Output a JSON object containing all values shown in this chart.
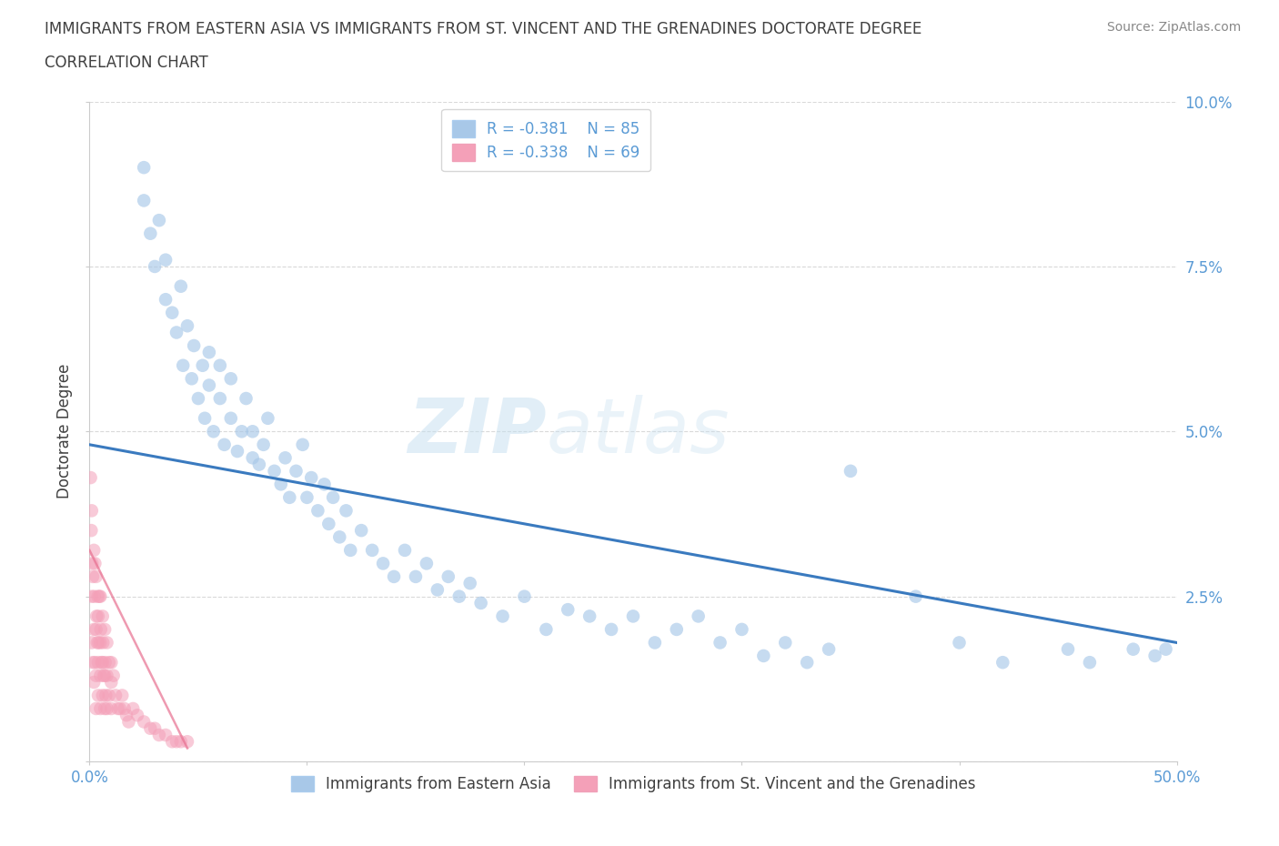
{
  "title_line1": "IMMIGRANTS FROM EASTERN ASIA VS IMMIGRANTS FROM ST. VINCENT AND THE GRENADINES DOCTORATE DEGREE",
  "title_line2": "CORRELATION CHART",
  "source": "Source: ZipAtlas.com",
  "ylabel": "Doctorate Degree",
  "xlim": [
    0,
    0.5
  ],
  "ylim": [
    0,
    0.1
  ],
  "xticks": [
    0.0,
    0.1,
    0.2,
    0.3,
    0.4,
    0.5
  ],
  "yticks": [
    0.0,
    0.025,
    0.05,
    0.075,
    0.1
  ],
  "xtick_labels": [
    "0.0%",
    "",
    "",
    "",
    "",
    "50.0%"
  ],
  "ytick_labels": [
    "",
    "2.5%",
    "5.0%",
    "7.5%",
    "10.0%"
  ],
  "legend_r1": "R = -0.381",
  "legend_n1": "N = 85",
  "legend_r2": "R = -0.338",
  "legend_n2": "N = 69",
  "color_blue": "#a8c8e8",
  "color_pink": "#f4a0b8",
  "color_line_blue": "#3a7abf",
  "color_line_pink": "#e87090",
  "watermark_zip": "ZIP",
  "watermark_atlas": "atlas",
  "blue_scatter_x": [
    0.025,
    0.025,
    0.028,
    0.03,
    0.032,
    0.035,
    0.035,
    0.038,
    0.04,
    0.042,
    0.043,
    0.045,
    0.047,
    0.048,
    0.05,
    0.052,
    0.053,
    0.055,
    0.055,
    0.057,
    0.06,
    0.06,
    0.062,
    0.065,
    0.065,
    0.068,
    0.07,
    0.072,
    0.075,
    0.075,
    0.078,
    0.08,
    0.082,
    0.085,
    0.088,
    0.09,
    0.092,
    0.095,
    0.098,
    0.1,
    0.102,
    0.105,
    0.108,
    0.11,
    0.112,
    0.115,
    0.118,
    0.12,
    0.125,
    0.13,
    0.135,
    0.14,
    0.145,
    0.15,
    0.155,
    0.16,
    0.165,
    0.17,
    0.175,
    0.18,
    0.19,
    0.2,
    0.21,
    0.22,
    0.23,
    0.24,
    0.25,
    0.26,
    0.27,
    0.28,
    0.29,
    0.3,
    0.31,
    0.32,
    0.33,
    0.34,
    0.38,
    0.4,
    0.42,
    0.45,
    0.46,
    0.48,
    0.49,
    0.495,
    0.35
  ],
  "blue_scatter_y": [
    0.085,
    0.09,
    0.08,
    0.075,
    0.082,
    0.07,
    0.076,
    0.068,
    0.065,
    0.072,
    0.06,
    0.066,
    0.058,
    0.063,
    0.055,
    0.06,
    0.052,
    0.057,
    0.062,
    0.05,
    0.055,
    0.06,
    0.048,
    0.052,
    0.058,
    0.047,
    0.05,
    0.055,
    0.046,
    0.05,
    0.045,
    0.048,
    0.052,
    0.044,
    0.042,
    0.046,
    0.04,
    0.044,
    0.048,
    0.04,
    0.043,
    0.038,
    0.042,
    0.036,
    0.04,
    0.034,
    0.038,
    0.032,
    0.035,
    0.032,
    0.03,
    0.028,
    0.032,
    0.028,
    0.03,
    0.026,
    0.028,
    0.025,
    0.027,
    0.024,
    0.022,
    0.025,
    0.02,
    0.023,
    0.022,
    0.02,
    0.022,
    0.018,
    0.02,
    0.022,
    0.018,
    0.02,
    0.016,
    0.018,
    0.015,
    0.017,
    0.025,
    0.018,
    0.015,
    0.017,
    0.015,
    0.017,
    0.016,
    0.017,
    0.044
  ],
  "pink_scatter_x": [
    0.0005,
    0.0008,
    0.001,
    0.001,
    0.001,
    0.0012,
    0.0015,
    0.0015,
    0.002,
    0.002,
    0.002,
    0.0022,
    0.0025,
    0.0025,
    0.003,
    0.003,
    0.003,
    0.003,
    0.0032,
    0.0035,
    0.0038,
    0.004,
    0.004,
    0.004,
    0.0042,
    0.0045,
    0.005,
    0.005,
    0.005,
    0.005,
    0.0052,
    0.0055,
    0.006,
    0.006,
    0.006,
    0.0062,
    0.0065,
    0.007,
    0.007,
    0.007,
    0.0072,
    0.0075,
    0.008,
    0.008,
    0.008,
    0.009,
    0.009,
    0.01,
    0.01,
    0.01,
    0.011,
    0.012,
    0.013,
    0.014,
    0.015,
    0.016,
    0.017,
    0.018,
    0.02,
    0.022,
    0.025,
    0.028,
    0.03,
    0.032,
    0.035,
    0.038,
    0.04,
    0.042,
    0.045
  ],
  "pink_scatter_y": [
    0.043,
    0.035,
    0.038,
    0.025,
    0.018,
    0.03,
    0.028,
    0.015,
    0.032,
    0.02,
    0.012,
    0.025,
    0.03,
    0.015,
    0.028,
    0.02,
    0.013,
    0.008,
    0.022,
    0.018,
    0.025,
    0.022,
    0.015,
    0.01,
    0.018,
    0.025,
    0.025,
    0.018,
    0.013,
    0.008,
    0.02,
    0.015,
    0.022,
    0.015,
    0.01,
    0.018,
    0.013,
    0.02,
    0.013,
    0.008,
    0.015,
    0.01,
    0.018,
    0.013,
    0.008,
    0.015,
    0.01,
    0.015,
    0.012,
    0.008,
    0.013,
    0.01,
    0.008,
    0.008,
    0.01,
    0.008,
    0.007,
    0.006,
    0.008,
    0.007,
    0.006,
    0.005,
    0.005,
    0.004,
    0.004,
    0.003,
    0.003,
    0.003,
    0.003
  ],
  "blue_trend_x": [
    0.0,
    0.5
  ],
  "blue_trend_y": [
    0.048,
    0.018
  ],
  "pink_trend_x": [
    0.0,
    0.045
  ],
  "pink_trend_y": [
    0.032,
    0.002
  ],
  "grid_color": "#d0d0d0",
  "title_color": "#404040",
  "tick_color": "#5b9bd5",
  "legend_label_color": "#5b9bd5"
}
